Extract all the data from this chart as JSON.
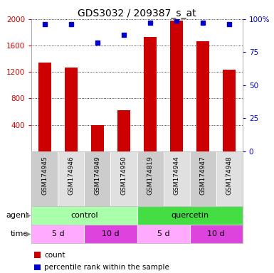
{
  "title": "GDS3032 / 209387_s_at",
  "samples": [
    "GSM174945",
    "GSM174946",
    "GSM174949",
    "GSM174950",
    "GSM174819",
    "GSM174944",
    "GSM174947",
    "GSM174948"
  ],
  "counts": [
    1340,
    1270,
    390,
    620,
    1730,
    1980,
    1670,
    1240
  ],
  "percentile_ranks": [
    96,
    96,
    82,
    88,
    97,
    99,
    97,
    96
  ],
  "ylim_left": [
    0,
    2000
  ],
  "ylim_right": [
    0,
    100
  ],
  "yticks_left": [
    400,
    800,
    1200,
    1600,
    2000
  ],
  "yticks_right": [
    0,
    25,
    50,
    75,
    100
  ],
  "agent_groups": [
    {
      "label": "control",
      "start": 0,
      "end": 4,
      "color": "#aaffaa"
    },
    {
      "label": "quercetin",
      "start": 4,
      "end": 8,
      "color": "#44dd44"
    }
  ],
  "time_groups": [
    {
      "label": "5 d",
      "start": 0,
      "end": 2,
      "color": "#ffaaff"
    },
    {
      "label": "10 d",
      "start": 2,
      "end": 4,
      "color": "#dd44dd"
    },
    {
      "label": "5 d",
      "start": 4,
      "end": 6,
      "color": "#ffaaff"
    },
    {
      "label": "10 d",
      "start": 6,
      "end": 8,
      "color": "#dd44dd"
    }
  ],
  "bar_color": "#cc0000",
  "dot_color": "#0000cc",
  "title_fontsize": 10,
  "axis_color_left": "#cc0000",
  "axis_color_right": "#0000cc",
  "sample_bg_odd": "#cccccc",
  "sample_bg_even": "#e0e0e0",
  "legend_items": [
    {
      "color": "#cc0000",
      "label": "count"
    },
    {
      "color": "#0000cc",
      "label": "percentile rank within the sample"
    }
  ]
}
